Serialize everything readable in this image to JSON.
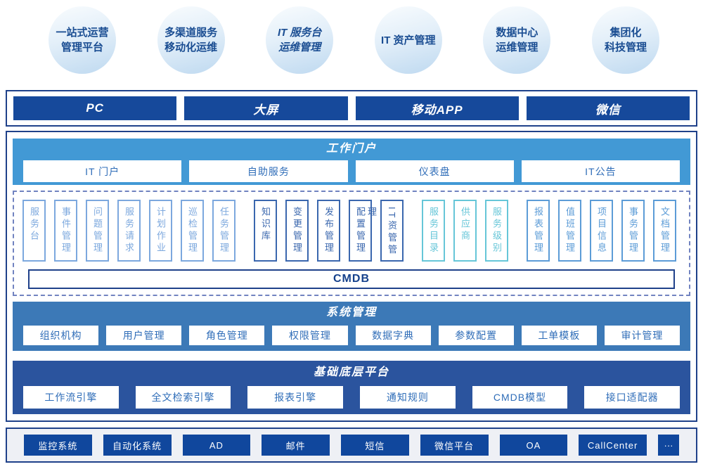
{
  "bubbles": [
    {
      "text": "一站式运营\n管理平台"
    },
    {
      "text": "多渠道服务\n移动化运维"
    },
    {
      "text": "IT 服务台\n运维管理"
    },
    {
      "text": "IT 资产管理"
    },
    {
      "text": "数据中心\n运维管理"
    },
    {
      "text": "集团化\n科技管理"
    }
  ],
  "channels": {
    "items": [
      "PC",
      "大屏",
      "移动APP",
      "微信"
    ]
  },
  "portal": {
    "title": "工作门户",
    "items": [
      "IT 门户",
      "自助服务",
      "仪表盘",
      "IT公告"
    ]
  },
  "modules": {
    "groups": [
      {
        "color": "#7ca8de",
        "items": [
          "服务台",
          "事件管理",
          "问题管理",
          "服务请求",
          "计划作业",
          "巡检管理",
          "任务管理"
        ]
      },
      {
        "color": "#3a67ae",
        "items": [
          "知识库",
          "变更管理",
          "发布管理",
          "配置管理",
          "IT资管管理"
        ]
      },
      {
        "color": "#66c6d8",
        "items": [
          "服务目录",
          "供应商",
          "服务级别"
        ]
      },
      {
        "color": "#5c9cd7",
        "items": [
          "报表管理",
          "值班管理",
          "项目信息",
          "事务管理",
          "文档管理"
        ]
      }
    ],
    "cmdb_label": "CMDB"
  },
  "system": {
    "title": "系统管理",
    "items": [
      "组织机构",
      "用户管理",
      "角色管理",
      "权限管理",
      "数据字典",
      "参数配置",
      "工单模板",
      "审计管理"
    ]
  },
  "base": {
    "title": "基础底层平台",
    "items": [
      "工作流引擎",
      "全文检索引擎",
      "报表引擎",
      "通知规则",
      "CMDB模型",
      "接口适配器"
    ]
  },
  "integrations": {
    "items": [
      "监控系统",
      "自动化系统",
      "AD",
      "邮件",
      "短信",
      "微信平台",
      "OA",
      "CallCenter",
      "···"
    ]
  },
  "colors": {
    "navy_border": "#1f418a",
    "channel_bar": "#16499b",
    "portal_bg": "#4299d5",
    "system_bg": "#3c79b7",
    "base_bg": "#2b549e",
    "integration_box": "#10479d",
    "button_text": "#2f6db8",
    "bubble_text": "#1a4d92"
  }
}
